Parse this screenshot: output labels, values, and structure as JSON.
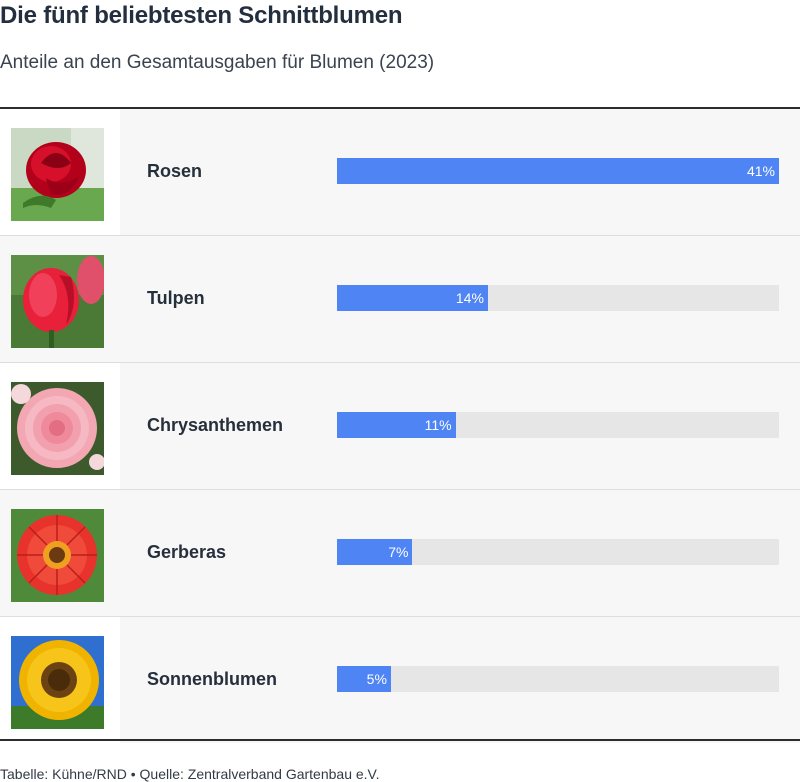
{
  "title": "Die fünf beliebtesten Schnittblumen",
  "subtitle": "Anteile an den Gesamtausgaben für Blumen (2023)",
  "footer": "Tabelle: Kühne/RND • Quelle: Zentralverband Gartenbau e.V.",
  "chart_data": {
    "type": "bar",
    "orientation": "horizontal",
    "title": "Die fünf beliebtesten Schnittblumen",
    "subtitle": "Anteile an den Gesamtausgaben für Blumen (2023)",
    "categories": [
      "Rosen",
      "Tulpen",
      "Chrysanthemen",
      "Gerberas",
      "Sonnenblumen"
    ],
    "values": [
      41,
      14,
      11,
      7,
      5
    ],
    "value_labels": [
      "41%",
      "14%",
      "11%",
      "7%",
      "5%"
    ],
    "xlim": [
      0,
      41
    ],
    "grid": false,
    "bar_color": "#4f84f5",
    "track_color": "#e6e6e6"
  },
  "rows": [
    {
      "name": "Rosen",
      "value": 41,
      "value_label": "41%",
      "icon": "red-rose-photo"
    },
    {
      "name": "Tulpen",
      "value": 14,
      "value_label": "14%",
      "icon": "red-tulip-photo"
    },
    {
      "name": "Chrysanthemen",
      "value": 11,
      "value_label": "11%",
      "icon": "pink-chrysanthemum-photo"
    },
    {
      "name": "Gerberas",
      "value": 7,
      "value_label": "7%",
      "icon": "red-gerbera-photo"
    },
    {
      "name": "Sonnenblumen",
      "value": 5,
      "value_label": "5%",
      "icon": "sunflower-photo"
    }
  ]
}
